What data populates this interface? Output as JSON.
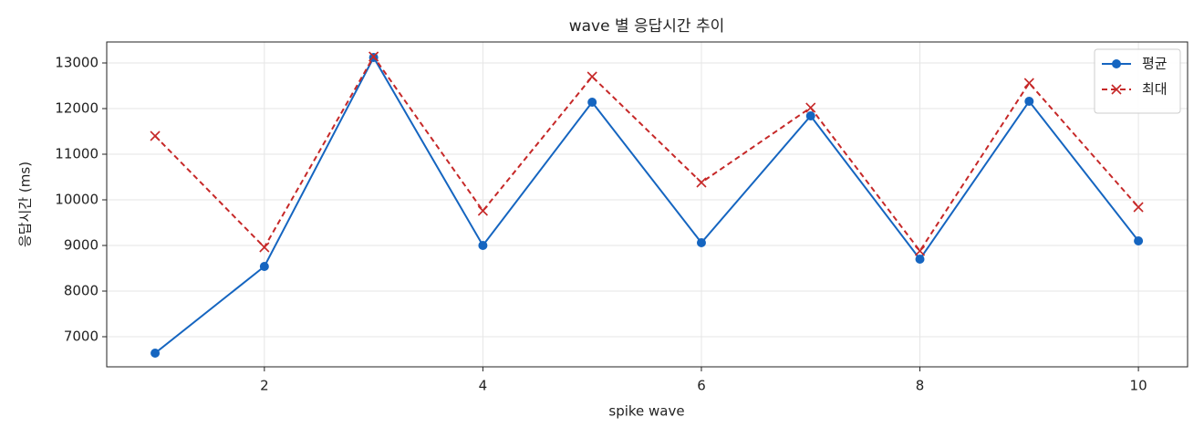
{
  "chart_data": {
    "type": "line",
    "title": "wave 별 응답시간 추이",
    "xlabel": "spike wave",
    "ylabel": "응답시간 (ms)",
    "x": [
      1,
      2,
      3,
      4,
      5,
      6,
      7,
      8,
      9,
      10
    ],
    "series": [
      {
        "name": "평균",
        "color": "#1565c0",
        "marker": "o",
        "linestyle": "solid",
        "values": [
          6640,
          8540,
          13120,
          9000,
          12140,
          9060,
          11840,
          8700,
          12160,
          9100
        ]
      },
      {
        "name": "최대",
        "color": "#c62828",
        "marker": "x",
        "linestyle": "dashed",
        "values": [
          11400,
          8960,
          13140,
          9760,
          12700,
          10380,
          12020,
          8880,
          12560,
          9840
        ]
      }
    ],
    "xlim": [
      0.557,
      10.45
    ],
    "ylim": [
      6340,
      13460
    ],
    "xticks": [
      2,
      4,
      6,
      8,
      10
    ],
    "yticks": [
      7000,
      8000,
      9000,
      10000,
      11000,
      12000,
      13000
    ],
    "grid": true,
    "legend": "upper right"
  }
}
